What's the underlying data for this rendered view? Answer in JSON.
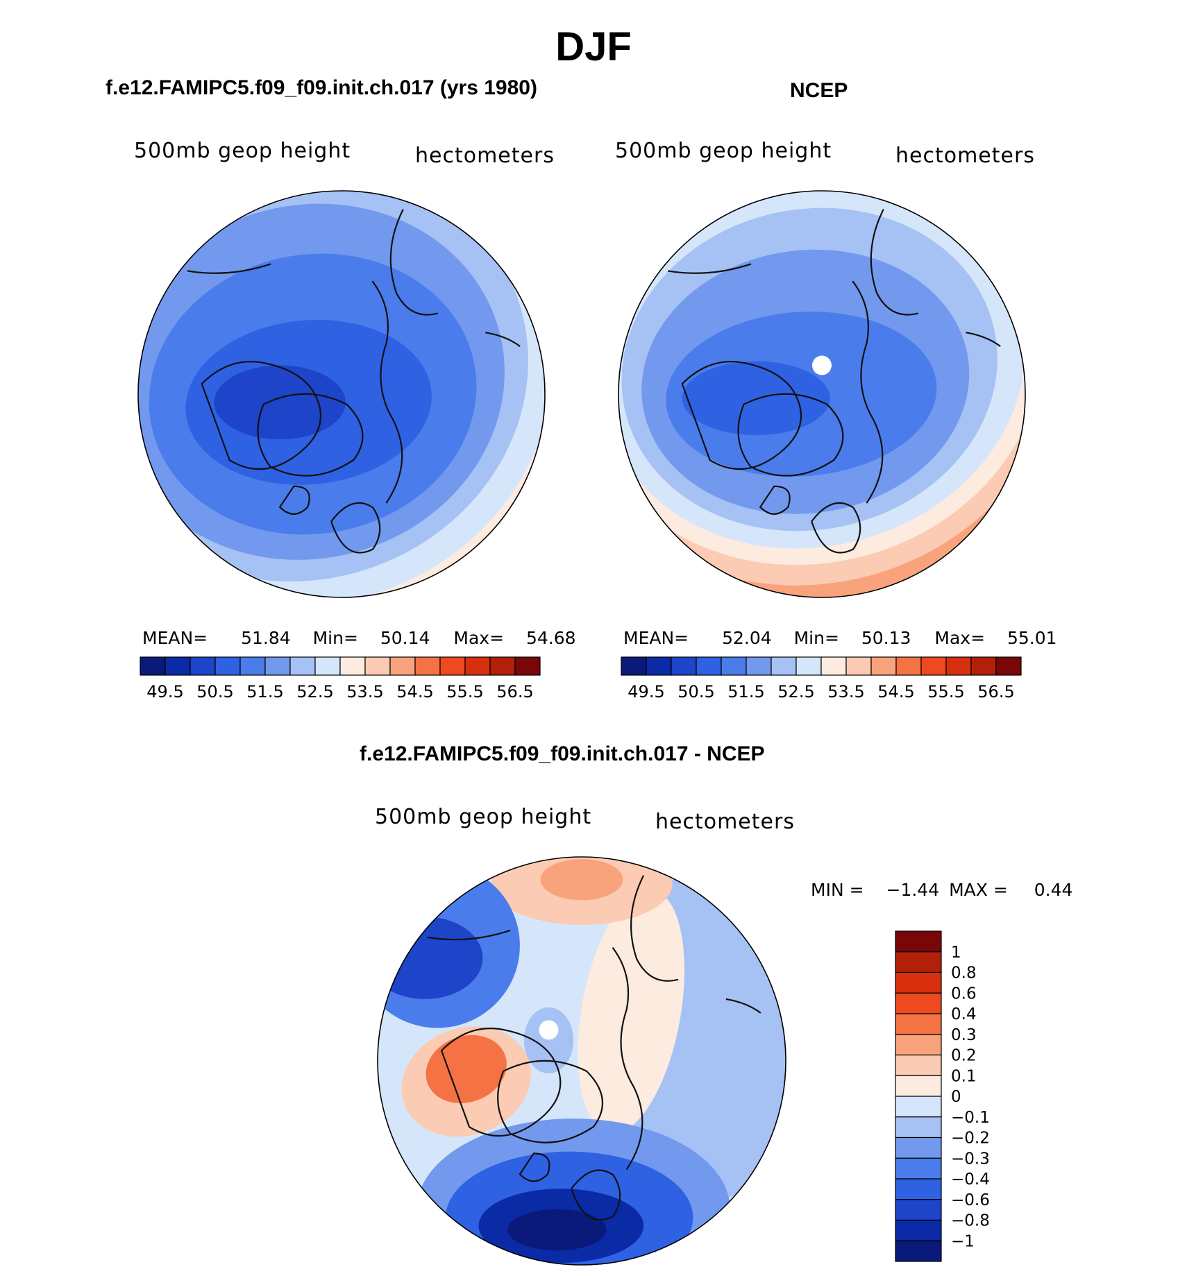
{
  "page_title": "DJF",
  "colors": {
    "seq_palette": [
      "#0a1a7a",
      "#0b2aa6",
      "#1d44c9",
      "#2f61e3",
      "#4a7deb",
      "#7399ee",
      "#a6c1f4",
      "#d6e6fa",
      "#fdebe0",
      "#fbcbb3",
      "#f9a37d",
      "#f57245",
      "#ef4a1f",
      "#d8300f",
      "#b2200a",
      "#7a0707"
    ],
    "diff_palette": [
      "#0a1a7a",
      "#0b2aa6",
      "#1d44c9",
      "#2f61e3",
      "#4a7deb",
      "#7399ee",
      "#a6c1f4",
      "#d6e6fa",
      "#fdebe0",
      "#fbcbb3",
      "#f9a37d",
      "#f57245",
      "#ef4a1f",
      "#d8300f",
      "#b2200a",
      "#7a0707"
    ]
  },
  "panels": {
    "model": {
      "title": "f.e12.FAMIPC5.f09_f09.init.ch.017 (yrs 1980)",
      "field_label": "500mb geop height",
      "units": "hectometers",
      "mean_label": "MEAN=",
      "mean_value": "51.84",
      "min_label": "Min=",
      "min_value": "50.14",
      "max_label": "Max=",
      "max_value": "54.68"
    },
    "obs": {
      "title": "NCEP",
      "field_label": "500mb geop height",
      "units": "hectometers",
      "mean_label": "MEAN=",
      "mean_value": "52.04",
      "min_label": "Min=",
      "min_value": "50.13",
      "max_label": "Max=",
      "max_value": "55.01"
    },
    "diff": {
      "title": "f.e12.FAMIPC5.f09_f09.init.ch.017 - NCEP",
      "field_label": "500mb geop height",
      "units": "hectometers",
      "min_label": "MIN =",
      "min_value": "−1.44",
      "max_label": "MAX =",
      "max_value": "0.44"
    }
  },
  "chart_data": [
    {
      "type": "heatmap",
      "title": "f.e12.FAMIPC5.f09_f09.init.ch.017 (yrs 1980)",
      "subtitle": "500mb geop height",
      "units": "hectometers",
      "projection": "north polar stereographic",
      "stats": {
        "mean": 51.84,
        "min": 50.14,
        "max": 54.68
      },
      "colorbar_ticks": [
        "49.5",
        "50.5",
        "51.5",
        "52.5",
        "53.5",
        "54.5",
        "55.5",
        "56.5"
      ],
      "levels": [
        49.5,
        50,
        50.5,
        51,
        51.5,
        52,
        52.5,
        53,
        53.5,
        54,
        54.5,
        55,
        55.5,
        56,
        56.5
      ]
    },
    {
      "type": "heatmap",
      "title": "NCEP",
      "subtitle": "500mb geop height",
      "units": "hectometers",
      "projection": "north polar stereographic",
      "stats": {
        "mean": 52.04,
        "min": 50.13,
        "max": 55.01
      },
      "colorbar_ticks": [
        "49.5",
        "50.5",
        "51.5",
        "52.5",
        "53.5",
        "54.5",
        "55.5",
        "56.5"
      ],
      "levels": [
        49.5,
        50,
        50.5,
        51,
        51.5,
        52,
        52.5,
        53,
        53.5,
        54,
        54.5,
        55,
        55.5,
        56,
        56.5
      ]
    },
    {
      "type": "heatmap",
      "title": "f.e12.FAMIPC5.f09_f09.init.ch.017 - NCEP",
      "subtitle": "500mb geop height",
      "units": "hectometers",
      "projection": "north polar stereographic",
      "stats": {
        "min": -1.44,
        "max": 0.44
      },
      "colorbar_ticks": [
        "1",
        "0.8",
        "0.6",
        "0.4",
        "0.3",
        "0.2",
        "0.1",
        "0",
        "−0.1",
        "−0.2",
        "−0.3",
        "−0.4",
        "−0.6",
        "−0.8",
        "−1"
      ],
      "levels": [
        -1,
        -0.8,
        -0.6,
        -0.4,
        -0.3,
        -0.2,
        -0.1,
        0,
        0.1,
        0.2,
        0.3,
        0.4,
        0.6,
        0.8,
        1
      ]
    }
  ]
}
